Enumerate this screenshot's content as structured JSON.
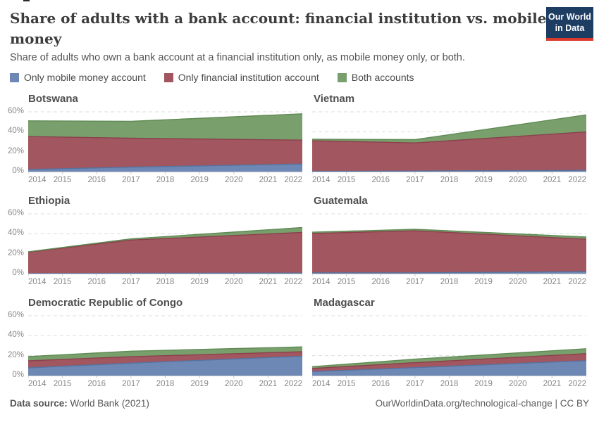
{
  "header": {
    "title": "Share of adults with a bank account: financial institution vs. mobile money",
    "subtitle": "Share of adults who own a bank account at a financial institution only, as mobile money only, or both.",
    "logo_line1": "Our World",
    "logo_line2": "in Data",
    "logo_bg": "#1d3d63",
    "logo_bar": "#dc3a2c"
  },
  "legend": [
    {
      "label": "Only mobile money account",
      "color": "#6e88b5",
      "line_color": "#56729f"
    },
    {
      "label": "Only financial institution account",
      "color": "#a25660",
      "line_color": "#8a414c"
    },
    {
      "label": "Both accounts",
      "color": "#79a06c",
      "line_color": "#5f8a54"
    }
  ],
  "axis": {
    "y_tick_labels_desc": [
      "60%",
      "40%",
      "20%",
      "0%"
    ],
    "x_tick_labels": [
      "2014",
      "2015",
      "2016",
      "2017",
      "2018",
      "2019",
      "2020",
      "2021",
      "2022"
    ],
    "grid_color": "#dcdcdc",
    "axis_color": "#c9c9c9",
    "label_color": "#878787"
  },
  "chart_data": {
    "type": "area",
    "stacked": true,
    "unit": "% of adults",
    "ylim": [
      0,
      60
    ],
    "grid": "dashed horizontal at 20/40/60",
    "legend_position": "top",
    "x_range": [
      2014,
      2022
    ],
    "anchor_years": [
      2014,
      2017,
      2022
    ],
    "series_names": [
      "Only mobile money account",
      "Only financial institution account",
      "Both accounts"
    ],
    "facets": [
      {
        "title": "Botswana",
        "show_y_labels": true,
        "series": [
          {
            "name": "Only mobile money account",
            "values": [
              2.1,
              4.5,
              7.6
            ]
          },
          {
            "name": "Only financial institution account",
            "values": [
              33.1,
              29.0,
              24.0
            ]
          },
          {
            "name": "Both accounts",
            "values": [
              15.8,
              17.0,
              26.4
            ]
          }
        ]
      },
      {
        "title": "Vietnam",
        "show_y_labels": false,
        "series": [
          {
            "name": "Only mobile money account",
            "values": [
              0.3,
              0.6,
              1.3
            ]
          },
          {
            "name": "Only financial institution account",
            "values": [
              30.7,
              28.2,
              38.5
            ]
          },
          {
            "name": "Both accounts",
            "values": [
              1.5,
              3.3,
              17.2
            ]
          }
        ]
      },
      {
        "title": "Ethiopia",
        "show_y_labels": true,
        "series": [
          {
            "name": "Only mobile money account",
            "values": [
              0.05,
              0.35,
              0.6
            ]
          },
          {
            "name": "Only financial institution account",
            "values": [
              21.5,
              33.3,
              40.7
            ]
          },
          {
            "name": "Both accounts",
            "values": [
              0.4,
              1.2,
              4.9
            ]
          }
        ]
      },
      {
        "title": "Guatemala",
        "show_y_labels": false,
        "series": [
          {
            "name": "Only mobile money account",
            "values": [
              0.7,
              0.8,
              2.0
            ]
          },
          {
            "name": "Only financial institution account",
            "values": [
              39.5,
              42.2,
              32.5
            ]
          },
          {
            "name": "Both accounts",
            "values": [
              1.4,
              1.5,
              2.2
            ]
          }
        ]
      },
      {
        "title": "Democratic Republic of Congo",
        "show_y_labels": true,
        "series": [
          {
            "name": "Only mobile money account",
            "values": [
              7.8,
              12.5,
              19.5
            ]
          },
          {
            "name": "Only financial institution account",
            "values": [
              7.0,
              6.5,
              4.4
            ]
          },
          {
            "name": "Both accounts",
            "values": [
              4.3,
              5.5,
              4.9
            ]
          }
        ]
      },
      {
        "title": "Madagascar",
        "show_y_labels": false,
        "series": [
          {
            "name": "Only mobile money account",
            "values": [
              4.0,
              8.0,
              15.0
            ]
          },
          {
            "name": "Only financial institution account",
            "values": [
              3.2,
              5.0,
              7.0
            ]
          },
          {
            "name": "Both accounts",
            "values": [
              1.8,
              3.5,
              5.0
            ]
          }
        ]
      }
    ]
  },
  "footer": {
    "source_bold": "Data source:",
    "source_rest": " World Bank (2021)",
    "right": "OurWorldinData.org/technological-change | CC BY"
  }
}
